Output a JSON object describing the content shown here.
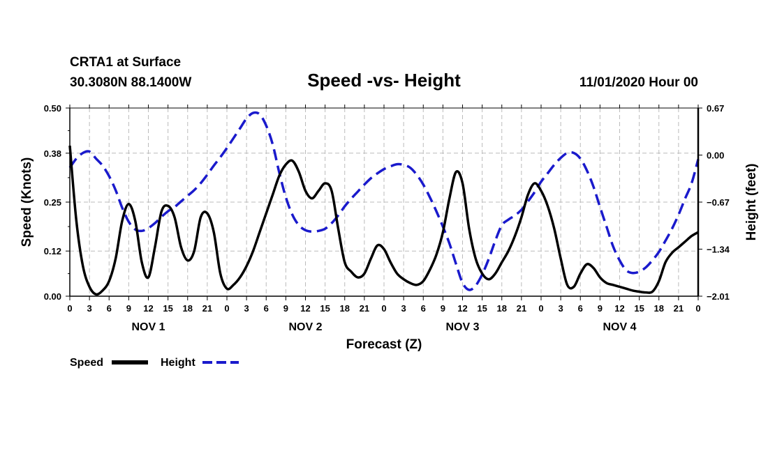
{
  "header": {
    "station": "CRTA1 at Surface",
    "coords": "30.3080N 88.1400W",
    "title": "Speed -vs- Height",
    "datetime": "11/01/2020 Hour 00"
  },
  "colors": {
    "speed": "#000000",
    "height": "#1a1acc",
    "grid": "#bbbbbb"
  },
  "legend": {
    "speed_label": "Speed",
    "height_label": "Height"
  },
  "chart_data": {
    "type": "line",
    "title": "Speed -vs- Height",
    "xlabel": "Forecast (Z)",
    "ylabel_left": "Speed (Knots)",
    "ylabel_right": "Height (feet)",
    "x_range_hours": [
      0,
      96
    ],
    "x_tick_hours": [
      0,
      3,
      6,
      9,
      12,
      15,
      18,
      21,
      24,
      27,
      30,
      33,
      36,
      39,
      42,
      45,
      48,
      51,
      54,
      57,
      60,
      63,
      66,
      69,
      72,
      75,
      78,
      81,
      84,
      87,
      90,
      93,
      96
    ],
    "x_tick_labels": [
      "0",
      "3",
      "6",
      "9",
      "12",
      "15",
      "18",
      "21",
      "0",
      "3",
      "6",
      "9",
      "12",
      "15",
      "18",
      "21",
      "0",
      "3",
      "6",
      "9",
      "12",
      "15",
      "18",
      "21",
      "0",
      "3",
      "6",
      "9",
      "12",
      "15",
      "18",
      "21",
      "0"
    ],
    "day_labels": [
      {
        "label": "NOV 1",
        "hour": 12
      },
      {
        "label": "NOV 2",
        "hour": 36
      },
      {
        "label": "NOV 3",
        "hour": 60
      },
      {
        "label": "NOV 4",
        "hour": 84
      }
    ],
    "y_left": {
      "range": [
        0,
        0.5
      ],
      "ticks": [
        0.0,
        0.12,
        0.25,
        0.38,
        0.5
      ],
      "tick_labels": [
        "0.00",
        "0.12",
        "0.25",
        "0.38",
        "0.50"
      ]
    },
    "y_right": {
      "range": [
        -2.01,
        0.67
      ],
      "ticks": [
        -2.01,
        -1.34,
        -0.67,
        0.0,
        0.67
      ],
      "tick_labels": [
        "−2.01",
        "−1.34",
        "−0.67",
        "0.00",
        "0.67"
      ]
    },
    "grid": true,
    "legend_position": "bottom-left",
    "series": [
      {
        "name": "Speed",
        "axis": "left",
        "style": "solid",
        "x": [
          0,
          1,
          2,
          3,
          4,
          5,
          6,
          7,
          8,
          9,
          10,
          11,
          12,
          13,
          14,
          15,
          16,
          17,
          18,
          19,
          20,
          21,
          22,
          23,
          24,
          25,
          26,
          27,
          28,
          29,
          30,
          31,
          32,
          33,
          34,
          35,
          36,
          37,
          38,
          39,
          40,
          41,
          42,
          43,
          44,
          45,
          46,
          47,
          48,
          49,
          50,
          51,
          52,
          53,
          54,
          55,
          56,
          57,
          58,
          59,
          60,
          61,
          62,
          63,
          64,
          65,
          66,
          67,
          68,
          69,
          70,
          71,
          72,
          73,
          74,
          75,
          76,
          77,
          78,
          79,
          80,
          81,
          82,
          83,
          84,
          85,
          86,
          87,
          88,
          89,
          90,
          91,
          92,
          93,
          94,
          95,
          96
        ],
        "values": [
          0.4,
          0.2,
          0.08,
          0.025,
          0.005,
          0.015,
          0.04,
          0.1,
          0.2,
          0.245,
          0.2,
          0.09,
          0.05,
          0.13,
          0.225,
          0.24,
          0.21,
          0.13,
          0.095,
          0.12,
          0.21,
          0.22,
          0.17,
          0.06,
          0.02,
          0.03,
          0.05,
          0.08,
          0.12,
          0.17,
          0.22,
          0.27,
          0.32,
          0.35,
          0.36,
          0.33,
          0.28,
          0.26,
          0.28,
          0.3,
          0.28,
          0.18,
          0.09,
          0.065,
          0.05,
          0.06,
          0.1,
          0.135,
          0.125,
          0.09,
          0.06,
          0.045,
          0.035,
          0.03,
          0.04,
          0.07,
          0.11,
          0.17,
          0.26,
          0.33,
          0.3,
          0.18,
          0.1,
          0.06,
          0.045,
          0.06,
          0.09,
          0.12,
          0.16,
          0.21,
          0.27,
          0.3,
          0.28,
          0.24,
          0.18,
          0.1,
          0.03,
          0.025,
          0.06,
          0.085,
          0.075,
          0.05,
          0.035,
          0.03,
          0.025,
          0.02,
          0.015,
          0.012,
          0.01,
          0.012,
          0.04,
          0.09,
          0.115,
          0.13,
          0.145,
          0.16,
          0.17
        ]
      },
      {
        "name": "Height",
        "axis": "right",
        "style": "dashed",
        "x": [
          0,
          1,
          2,
          3,
          4,
          5,
          6,
          7,
          8,
          9,
          10,
          11,
          12,
          13,
          14,
          15,
          16,
          17,
          18,
          19,
          20,
          21,
          22,
          23,
          24,
          25,
          26,
          27,
          28,
          29,
          30,
          31,
          32,
          33,
          34,
          35,
          36,
          37,
          38,
          39,
          40,
          41,
          42,
          43,
          44,
          45,
          46,
          47,
          48,
          49,
          50,
          51,
          52,
          53,
          54,
          55,
          56,
          57,
          58,
          59,
          60,
          61,
          62,
          63,
          64,
          65,
          66,
          67,
          68,
          69,
          70,
          71,
          72,
          73,
          74,
          75,
          76,
          77,
          78,
          79,
          80,
          81,
          82,
          83,
          84,
          85,
          86,
          87,
          88,
          89,
          90,
          91,
          92,
          93,
          94,
          95,
          96
        ],
        "values": [
          -0.18,
          -0.05,
          0.03,
          0.05,
          -0.05,
          -0.15,
          -0.3,
          -0.5,
          -0.75,
          -0.95,
          -1.06,
          -1.08,
          -1.04,
          -0.97,
          -0.88,
          -0.8,
          -0.74,
          -0.66,
          -0.58,
          -0.5,
          -0.4,
          -0.28,
          -0.15,
          -0.03,
          0.1,
          0.24,
          0.38,
          0.52,
          0.6,
          0.58,
          0.42,
          0.15,
          -0.25,
          -0.6,
          -0.85,
          -1.0,
          -1.07,
          -1.09,
          -1.08,
          -1.05,
          -0.97,
          -0.86,
          -0.73,
          -0.62,
          -0.52,
          -0.42,
          -0.33,
          -0.26,
          -0.2,
          -0.16,
          -0.13,
          -0.14,
          -0.18,
          -0.28,
          -0.42,
          -0.6,
          -0.8,
          -1.02,
          -1.26,
          -1.55,
          -1.82,
          -1.92,
          -1.86,
          -1.7,
          -1.48,
          -1.22,
          -1.0,
          -0.92,
          -0.86,
          -0.78,
          -0.66,
          -0.53,
          -0.38,
          -0.26,
          -0.14,
          -0.04,
          0.03,
          0.03,
          -0.05,
          -0.22,
          -0.45,
          -0.74,
          -1.02,
          -1.3,
          -1.5,
          -1.64,
          -1.68,
          -1.66,
          -1.6,
          -1.5,
          -1.38,
          -1.22,
          -1.05,
          -0.85,
          -0.62,
          -0.4,
          -0.06
        ]
      }
    ]
  }
}
